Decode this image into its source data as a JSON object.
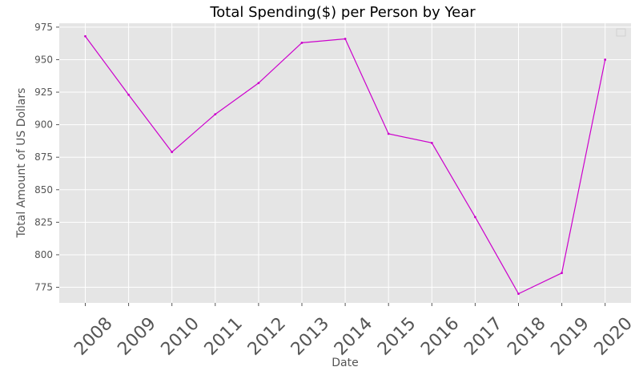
{
  "chart_data": {
    "type": "line",
    "title": "Total Spending($) per Person by Year",
    "xlabel": "Date",
    "ylabel": "Total Amount of US Dollars",
    "x": [
      "2008",
      "2009",
      "2010",
      "2011",
      "2012",
      "2013",
      "2014",
      "2015",
      "2016",
      "2017",
      "2018",
      "2019",
      "2020"
    ],
    "series": [
      {
        "values": [
          968,
          923,
          879,
          908,
          932,
          963,
          966,
          893,
          886,
          829,
          770,
          786,
          950
        ],
        "color": "#cc00cc"
      }
    ],
    "yticks": [
      775,
      800,
      825,
      850,
      875,
      900,
      925,
      950,
      975
    ],
    "ylim": [
      763,
      978
    ],
    "grid": true,
    "legend": "top-right",
    "colors": {
      "plot_bg": "#e5e5e5",
      "grid": "#ffffff",
      "line": "#cc00cc",
      "tick_text": "#555555"
    }
  }
}
